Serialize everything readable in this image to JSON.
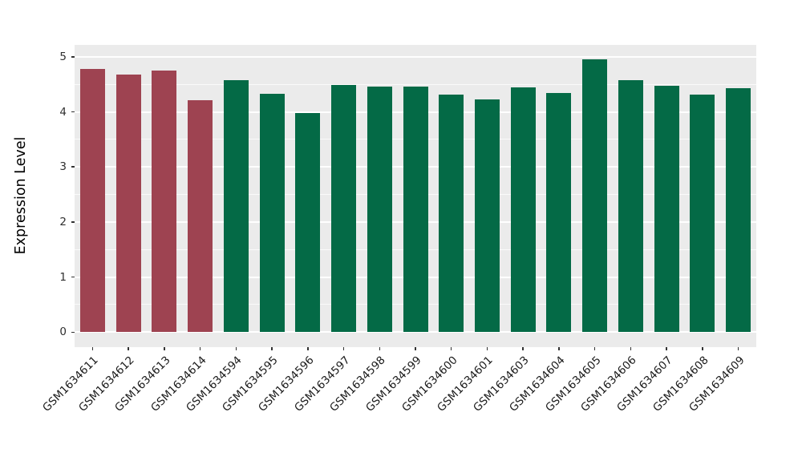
{
  "chart_data": {
    "type": "bar",
    "title": "",
    "xlabel": "",
    "ylabel": "Expression Level",
    "ylim": [
      0,
      5.2
    ],
    "yticks": [
      0,
      1,
      2,
      3,
      4,
      5
    ],
    "grid": "major and minor horizontal white gridlines on gray panel",
    "legend_position": "none",
    "categories": [
      "GSM1634611",
      "GSM1634612",
      "GSM1634613",
      "GSM1634614",
      "GSM1634594",
      "GSM1634595",
      "GSM1634596",
      "GSM1634597",
      "GSM1634598",
      "GSM1634599",
      "GSM1634600",
      "GSM1634601",
      "GSM1634603",
      "GSM1634604",
      "GSM1634605",
      "GSM1634606",
      "GSM1634607",
      "GSM1634608",
      "GSM1634609"
    ],
    "values": [
      4.78,
      4.67,
      4.75,
      4.21,
      4.58,
      4.33,
      3.98,
      4.49,
      4.46,
      4.46,
      4.32,
      4.22,
      4.44,
      4.34,
      4.95,
      4.58,
      4.48,
      4.32,
      4.43
    ],
    "groups": [
      "group1",
      "group1",
      "group1",
      "group1",
      "group2",
      "group2",
      "group2",
      "group2",
      "group2",
      "group2",
      "group2",
      "group2",
      "group2",
      "group2",
      "group2",
      "group2",
      "group2",
      "group2",
      "group2"
    ],
    "group_colors": {
      "group1": "#9E4351",
      "group2": "#046A46"
    },
    "panel_color": "#EBEBEB",
    "gridline_color": "#FFFFFF",
    "x_label_angle_deg": 45
  }
}
